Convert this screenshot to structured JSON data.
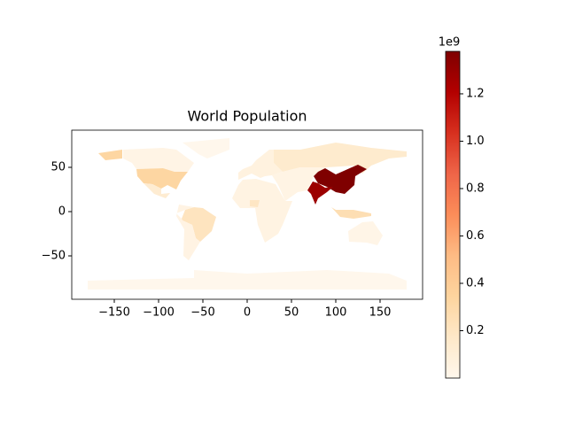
{
  "chart_data": {
    "type": "choropleth",
    "title": "World Population",
    "xlim": [
      -198,
      198
    ],
    "ylim": [
      -99,
      92
    ],
    "xticks": [
      {
        "value": -150,
        "label": "−150"
      },
      {
        "value": -100,
        "label": "−100"
      },
      {
        "value": -50,
        "label": "−50"
      },
      0,
      50,
      100,
      150
    ],
    "yticks": [
      {
        "value": -50,
        "label": "−50"
      },
      0,
      50
    ],
    "colorscale": [
      "#fff7ec",
      "#fee8c8",
      "#fdd49e",
      "#fdbb84",
      "#fc8d59",
      "#ef6548",
      "#d7301f",
      "#b30000",
      "#7f0000"
    ],
    "clim": [
      4050,
      1379302771
    ],
    "cticks": [
      {
        "value": 200000000,
        "label": "0.2"
      },
      {
        "value": 400000000,
        "label": "0.4"
      },
      {
        "value": 600000000,
        "label": "0.6"
      },
      {
        "value": 800000000,
        "label": "0.8"
      },
      {
        "value": 1000000000,
        "label": "1.0"
      },
      {
        "value": 1200000000,
        "label": "1.2"
      }
    ],
    "coffset": "1e9",
    "regions": [
      {
        "value": 4050,
        "lon": [
          -180,
          -180,
          -60,
          -60,
          0,
          90,
          160,
          180,
          180
        ],
        "lat": [
          -88,
          -78,
          -75,
          -66,
          -70,
          -66,
          -70,
          -78,
          -88
        ]
      },
      {
        "value": 57000,
        "lon": [
          -73,
          -20,
          -20,
          -45,
          -55
        ],
        "lat": [
          78,
          83,
          70,
          60,
          65
        ]
      },
      {
        "value": 35000000,
        "lon": [
          -140,
          -140,
          -95,
          -80,
          -60,
          -67,
          -82,
          -95,
          -125,
          -130
        ],
        "lat": [
          60,
          70,
          72,
          70,
          55,
          45,
          45,
          49,
          48,
          55
        ]
      },
      {
        "value": 326625791,
        "lon": [
          -125,
          -95,
          -82,
          -67,
          -75,
          -80,
          -90,
          -97,
          -107,
          -117,
          -124,
          null,
          -168,
          -141,
          -141,
          -160
        ],
        "lat": [
          48,
          49,
          45,
          45,
          35,
          25,
          30,
          26,
          31,
          32,
          40,
          null,
          66,
          70,
          60,
          58
        ]
      },
      {
        "value": 124574795,
        "lon": [
          -117,
          -107,
          -97,
          -97,
          -87,
          -92,
          -105
        ],
        "lat": [
          32,
          31,
          26,
          20,
          21,
          15,
          20
        ]
      },
      {
        "value": 207353391,
        "lon": [
          -74,
          -70,
          -60,
          -50,
          -35,
          -40,
          -53,
          -58,
          -62,
          -73
        ],
        "lat": [
          -8,
          2,
          5,
          4,
          -6,
          -22,
          -34,
          -30,
          -15,
          -10
        ]
      },
      {
        "value": 44293293,
        "lon": [
          -80,
          -74,
          -73,
          -62,
          -58,
          -53,
          -66,
          -72,
          -71,
          -80,
          -77,
          -60,
          -70
        ],
        "lat": [
          -2,
          -8,
          -10,
          -15,
          -30,
          -34,
          -55,
          -50,
          -20,
          -5,
          8,
          5,
          2
        ]
      },
      {
        "value": 50000000,
        "lon": [
          -17,
          -10,
          -5,
          10,
          32,
          43,
          51,
          40,
          35,
          20,
          12,
          9,
          -8
        ],
        "lat": [
          15,
          30,
          36,
          37,
          31,
          12,
          12,
          -15,
          -25,
          -35,
          -15,
          4,
          4
        ]
      },
      {
        "value": 190632261,
        "lon": [
          3,
          3,
          14,
          12
        ],
        "lat": [
          6,
          13,
          13,
          5
        ]
      },
      {
        "value": 60000000,
        "lon": [
          -10,
          -10,
          -5,
          5,
          10,
          25,
          30,
          30,
          40,
          28,
          20,
          15,
          5
        ],
        "lat": [
          36,
          44,
          48,
          52,
          58,
          70,
          70,
          55,
          45,
          41,
          40,
          38,
          43
        ]
      },
      {
        "value": 142257519,
        "lon": [
          30,
          60,
          100,
          140,
          180,
          180,
          160,
          140,
          130,
          120,
          90,
          60,
          40,
          30
        ],
        "lat": [
          70,
          70,
          78,
          72,
          68,
          62,
          60,
          52,
          43,
          52,
          50,
          50,
          45,
          55
        ]
      },
      {
        "value": 40000000,
        "lon": [
          40,
          60,
          90,
          80,
          75,
          68,
          57,
          43,
          35,
          28
        ],
        "lat": [
          45,
          50,
          50,
          45,
          40,
          24,
          22,
          12,
          30,
          41
        ]
      },
      {
        "value": 1379302771,
        "lon": [
          75,
          80,
          88,
          100,
          118,
          125,
          135,
          122,
          121,
          110,
          100,
          90,
          80
        ],
        "lat": [
          40,
          45,
          49,
          42,
          50,
          53,
          48,
          40,
          30,
          20,
          22,
          28,
          32
        ]
      },
      {
        "value": 1281935911,
        "lon": [
          68,
          74,
          80,
          88,
          97,
          90,
          80,
          77,
          72
        ],
        "lat": [
          24,
          34,
          32,
          27,
          28,
          22,
          15,
          8,
          20
        ]
      },
      {
        "value": 260580739,
        "lon": [
          95,
          105,
          120,
          140,
          140,
          120,
          110,
          100
        ],
        "lat": [
          5,
          -6,
          -8,
          -5,
          -2,
          2,
          2,
          2
        ]
      },
      {
        "value": 23232413,
        "lon": [
          114,
          130,
          142,
          153,
          147,
          135,
          115
        ],
        "lat": [
          -22,
          -12,
          -11,
          -27,
          -38,
          -35,
          -34
        ]
      }
    ]
  }
}
